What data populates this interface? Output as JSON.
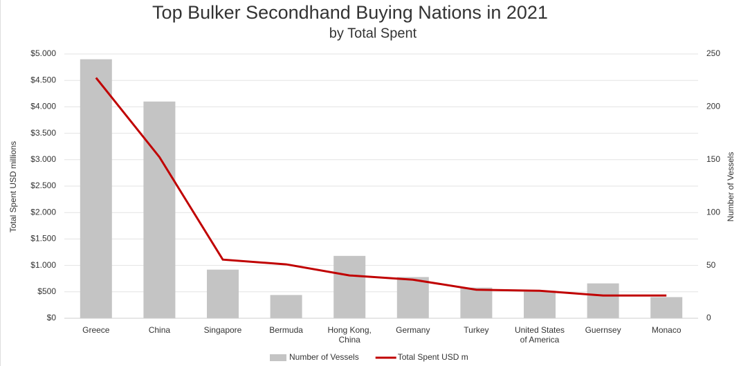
{
  "chart_data": {
    "type": "bar-line",
    "title": "Top Bulker Secondhand Buying Nations in 2021",
    "subtitle": "by Total Spent",
    "ylabel": "Total Spent USD millions",
    "y2label": "Number of Vessels",
    "categories": [
      "Greece",
      "China",
      "Singapore",
      "Bermuda",
      "Hong Kong, China",
      "Germany",
      "Turkey",
      "United States of America",
      "Guernsey",
      "Monaco"
    ],
    "series": [
      {
        "name": "Number of Vessels",
        "type": "bar",
        "axis": "y2",
        "color": "#c4c4c4",
        "values": [
          245,
          205,
          46,
          22,
          59,
          39,
          29,
          26,
          33,
          20
        ]
      },
      {
        "name": "Total Spent USD m",
        "type": "line",
        "axis": "y",
        "color": "#c00000",
        "values": [
          4550,
          3050,
          1110,
          1020,
          810,
          730,
          540,
          520,
          430,
          430
        ]
      }
    ],
    "ylim": [
      0,
      5000
    ],
    "yticks": [
      {
        "value": 0,
        "label": "$0"
      },
      {
        "value": 500,
        "label": "$500"
      },
      {
        "value": 1000,
        "label": "$1.000"
      },
      {
        "value": 1500,
        "label": "$1.500"
      },
      {
        "value": 2000,
        "label": "$2.000"
      },
      {
        "value": 2500,
        "label": "$2.500"
      },
      {
        "value": 3000,
        "label": "$3.000"
      },
      {
        "value": 3500,
        "label": "$3.500"
      },
      {
        "value": 4000,
        "label": "$4.000"
      },
      {
        "value": 4500,
        "label": "$4.500"
      },
      {
        "value": 5000,
        "label": "$5.000"
      }
    ],
    "y2lim": [
      0,
      250
    ],
    "y2ticks": [
      0,
      50,
      100,
      150,
      200,
      250
    ],
    "grid": true,
    "legend": "bottom"
  }
}
